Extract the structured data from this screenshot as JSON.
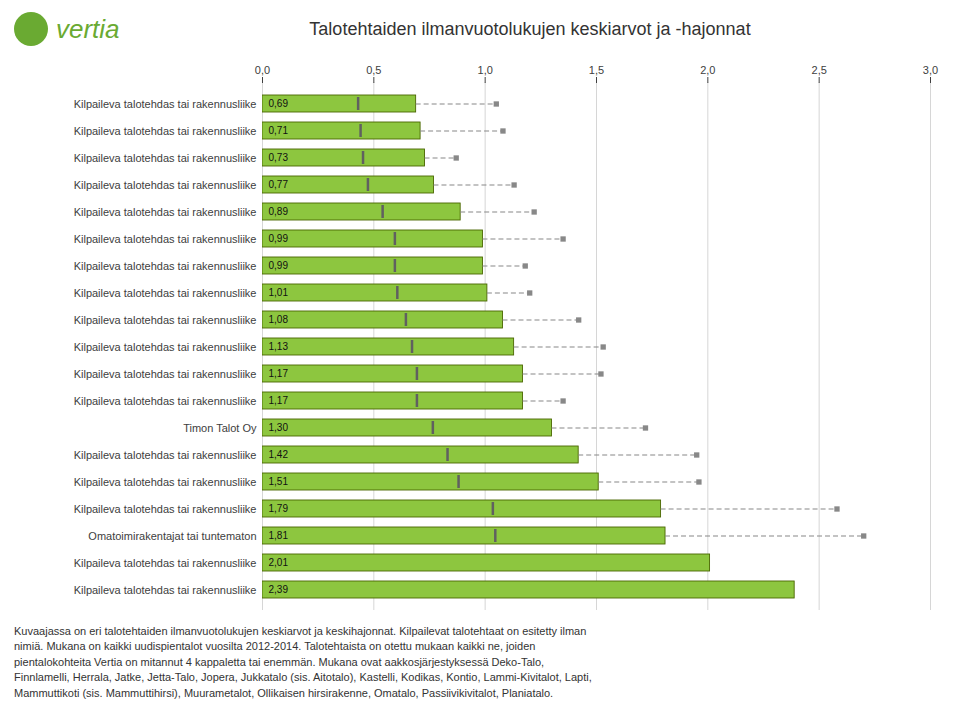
{
  "chart_data": {
    "type": "bar",
    "orientation": "horizontal",
    "title": "Talotehtaiden ilmanvuotolukujen keskiarvot ja -hajonnat",
    "categories": [
      "Kilpaileva talotehdas tai rakennusliike",
      "Kilpaileva talotehdas tai rakennusliike",
      "Kilpaileva talotehdas tai rakennusliike",
      "Kilpaileva talotehdas tai rakennusliike",
      "Kilpaileva talotehdas tai rakennusliike",
      "Kilpaileva talotehdas tai rakennusliike",
      "Kilpaileva talotehdas tai rakennusliike",
      "Kilpaileva talotehdas tai rakennusliike",
      "Kilpaileva talotehdas tai rakennusliike",
      "Kilpaileva talotehdas tai rakennusliike",
      "Kilpaileva talotehdas tai rakennusliike",
      "Kilpaileva talotehdas tai rakennusliike",
      "Timon Talot Oy",
      "Kilpaileva talotehdas tai rakennusliike",
      "Kilpaileva talotehdas tai rakennusliike",
      "Kilpaileva talotehdas tai rakennusliike",
      "Omatoimirakentajat tai tuntematon",
      "Kilpaileva talotehdas tai rakennusliike",
      "Kilpaileva talotehdas tai rakennusliike"
    ],
    "values": [
      0.69,
      0.71,
      0.73,
      0.77,
      0.89,
      0.99,
      0.99,
      1.01,
      1.08,
      1.13,
      1.17,
      1.17,
      1.3,
      1.42,
      1.51,
      1.79,
      1.81,
      2.01,
      2.39
    ],
    "value_labels": [
      "0,69",
      "0,71",
      "0,73",
      "0,77",
      "0,89",
      "0,99",
      "0,99",
      "1,01",
      "1,08",
      "1,13",
      "1,17",
      "1,17",
      "1,30",
      "1,42",
      "1,51",
      "1,79",
      "1,81",
      "2,01",
      "2,39"
    ],
    "data_labels": true,
    "color": "#8dc63f",
    "edge_color": "#4a6600",
    "errors": {
      "color": "#888888",
      "marker": "square",
      "line_style": "dashed",
      "values": [
        0.36,
        0.37,
        0.14,
        0.36,
        0.33,
        0.36,
        0.19,
        0.19,
        0.34,
        0.4,
        0.35,
        0.18,
        0.42,
        0.53,
        0.45,
        0.79,
        0.89,
        0.0,
        0.0
      ]
    },
    "stripes": {
      "color": "#606060",
      "values": [
        0.4295,
        0.4405,
        0.4515,
        0.4735,
        0.5395,
        0.5945,
        0.5945,
        0.6055,
        0.644,
        0.6715,
        0.6935,
        0.6935,
        0.765,
        0.831,
        0.8805,
        1.0345,
        1.0455,
        null,
        null
      ]
    },
    "xlim": [
      0,
      3.0
    ],
    "xticks": [
      {
        "value": 0.0,
        "label": "0,0"
      },
      {
        "value": 0.5,
        "label": "0,5"
      },
      {
        "value": 1.0,
        "label": "1,0"
      },
      {
        "value": 1.5,
        "label": "1,5"
      },
      {
        "value": 2.0,
        "label": "2,0"
      },
      {
        "value": 2.5,
        "label": "2,5"
      },
      {
        "value": 3.0,
        "label": "3,0"
      }
    ],
    "grid": true,
    "annotations": [
      {
        "text": "vertia",
        "color": "#6aaa32"
      }
    ],
    "footnote": [
      "Kuvaajassa on eri talotehtaiden ilmanvuotolukujen keskiarvot ja keskihajonnat. Kilpailevat talotehtaat on esitetty ilman",
      "nimiä. Mukana on kaikki uudispientalot vuosilta 2012-2014. Talotehtaista on otettu mukaan kaikki ne, joiden",
      "pientalokohteita Vertia on mitannut 4 kappaletta tai enemmän. Mukana ovat aakkosjärjestyksessä Deko-Talo,",
      "Finnlamelli, Herrala, Jatke, Jetta-Talo, Jopera, Jukkatalo (sis. Aitotalo), Kastelli, Kodikas, Kontio, Lammi-Kivitalot, Lapti,",
      "Mammuttikoti (sis. Mammuttihirsi), Muurametalot, Ollikaisen hirsirakenne, Omatalo, Passiivikivitalot, Planiatalo."
    ]
  }
}
